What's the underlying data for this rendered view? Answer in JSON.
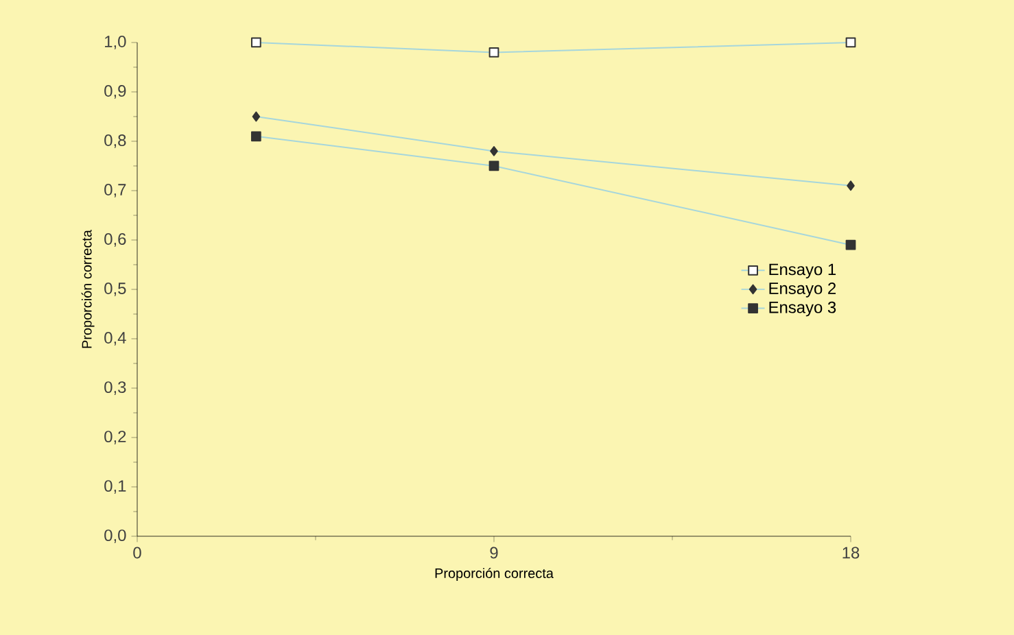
{
  "chart_data": {
    "type": "line",
    "xlabel": "Proporción correcta",
    "ylabel": "Proporción correcta",
    "xlim": [
      0,
      18
    ],
    "xticks": [
      0,
      9,
      18
    ],
    "ylim": [
      0,
      1
    ],
    "yticks": [
      {
        "value": 0,
        "label": "0,0"
      },
      {
        "value": 0.1,
        "label": "0,1"
      },
      {
        "value": 0.2,
        "label": "0,2"
      },
      {
        "value": 0.3,
        "label": "0,3"
      },
      {
        "value": 0.4,
        "label": "0,4"
      },
      {
        "value": 0.5,
        "label": "0,5"
      },
      {
        "value": 0.6,
        "label": "0,6"
      },
      {
        "value": 0.7,
        "label": "0,7"
      },
      {
        "value": 0.8,
        "label": "0,8"
      },
      {
        "value": 0.9,
        "label": "0,9"
      },
      {
        "value": 1,
        "label": "1,0"
      }
    ],
    "x": [
      3,
      9,
      18
    ],
    "legend": "right",
    "grid": false,
    "series": [
      {
        "name": "Ensayo 1",
        "color": "#a6d6dc",
        "marker": "square",
        "values": [
          1.0,
          0.98,
          1.0
        ]
      },
      {
        "name": "Ensayo 2",
        "color": "#a6d6dc",
        "marker": "diamond",
        "values": [
          0.85,
          0.78,
          0.71
        ]
      },
      {
        "name": "Ensayo 3",
        "color": "#a6d6dc",
        "marker": "square",
        "values": [
          0.81,
          0.75,
          0.59
        ]
      }
    ]
  }
}
